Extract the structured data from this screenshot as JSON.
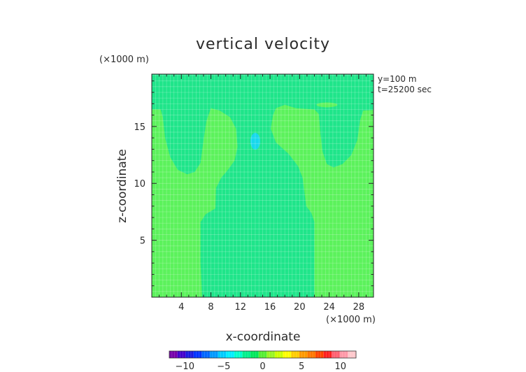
{
  "chart_data": {
    "type": "heatmap",
    "title": "vertical velocity",
    "xlabel": "x-coordinate",
    "ylabel": "z-coordinate",
    "x_unit": "(×1000 m)",
    "y_unit": "(×1000 m)",
    "xlim": [
      0,
      30
    ],
    "ylim": [
      0,
      19.6
    ],
    "x_ticks": [
      4,
      8,
      12,
      16,
      20,
      24,
      28
    ],
    "y_ticks": [
      5,
      10,
      15
    ],
    "annotations": [
      "y=100 m",
      "t=25200 sec"
    ],
    "colorbar": {
      "range": [
        -12,
        12
      ],
      "ticks": [
        -10,
        -5,
        0,
        5,
        10
      ],
      "colors": [
        "#7700aa",
        "#4400cc",
        "#1a1ae0",
        "#0033ff",
        "#0066ff",
        "#0099ff",
        "#00ccff",
        "#00eeff",
        "#00ffcc",
        "#00f08c",
        "#00e85c",
        "#55ee33",
        "#99f522",
        "#ccff00",
        "#ffff00",
        "#ffcc00",
        "#ff9900",
        "#ff7700",
        "#ff4400",
        "#ff2020",
        "#ff6070",
        "#ff99a8",
        "#ffc8cc"
      ]
    },
    "grid": true,
    "field_description": "background contour level near 0 (light green) with deeper green downdraft column and a small cyan minimum near x=14, z=13.7",
    "levels": [
      {
        "name": "background",
        "value": 0.5,
        "color": "#5cf25c"
      },
      {
        "name": "weak-negative",
        "value": -0.5,
        "color": "#1fe58a"
      },
      {
        "name": "minimum",
        "value": -2.5,
        "color": "#16d8ec"
      }
    ],
    "regions": {
      "upper_band": {
        "z_range": [
          16.4,
          19.6
        ],
        "x_range": [
          0,
          30
        ]
      },
      "left_lobe": {
        "x_range": [
          1.2,
          6.6
        ],
        "z_min": 10.8
      },
      "right_lobe": {
        "x_range": [
          22.8,
          28.2
        ],
        "z_min": 11.4
      },
      "central_column": {
        "x_range": [
          5.2,
          22.0
        ],
        "z_range": [
          0,
          17.2
        ]
      },
      "minimum_spot": {
        "x_center": 14.0,
        "z_center": 13.7
      },
      "small_band": {
        "x_center": 23.7,
        "z_center": 16.9
      }
    }
  }
}
